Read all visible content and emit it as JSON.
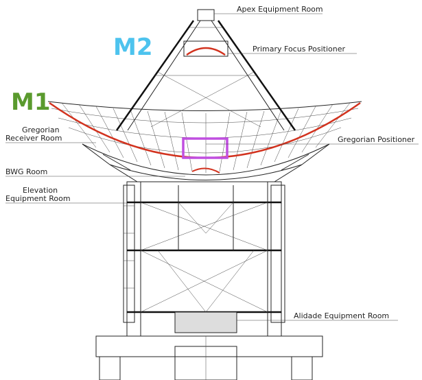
{
  "markers": {
    "m2": "M2",
    "m1": "M1"
  },
  "callouts": {
    "apex": {
      "text": "Apex Equipment Room"
    },
    "primary_focus": {
      "text": "Primary Focus Positioner"
    },
    "gregorian_receiver": {
      "lines": [
        "Gregorian",
        "Receiver Room"
      ]
    },
    "gregorian_positioner": {
      "text": "Gregorian Positioner"
    },
    "bwg": {
      "text": "BWG Room"
    },
    "elevation": {
      "lines": [
        "Elevation",
        "Equipment Room"
      ]
    },
    "alidade": {
      "text": "Alidade Equipment Room"
    }
  }
}
